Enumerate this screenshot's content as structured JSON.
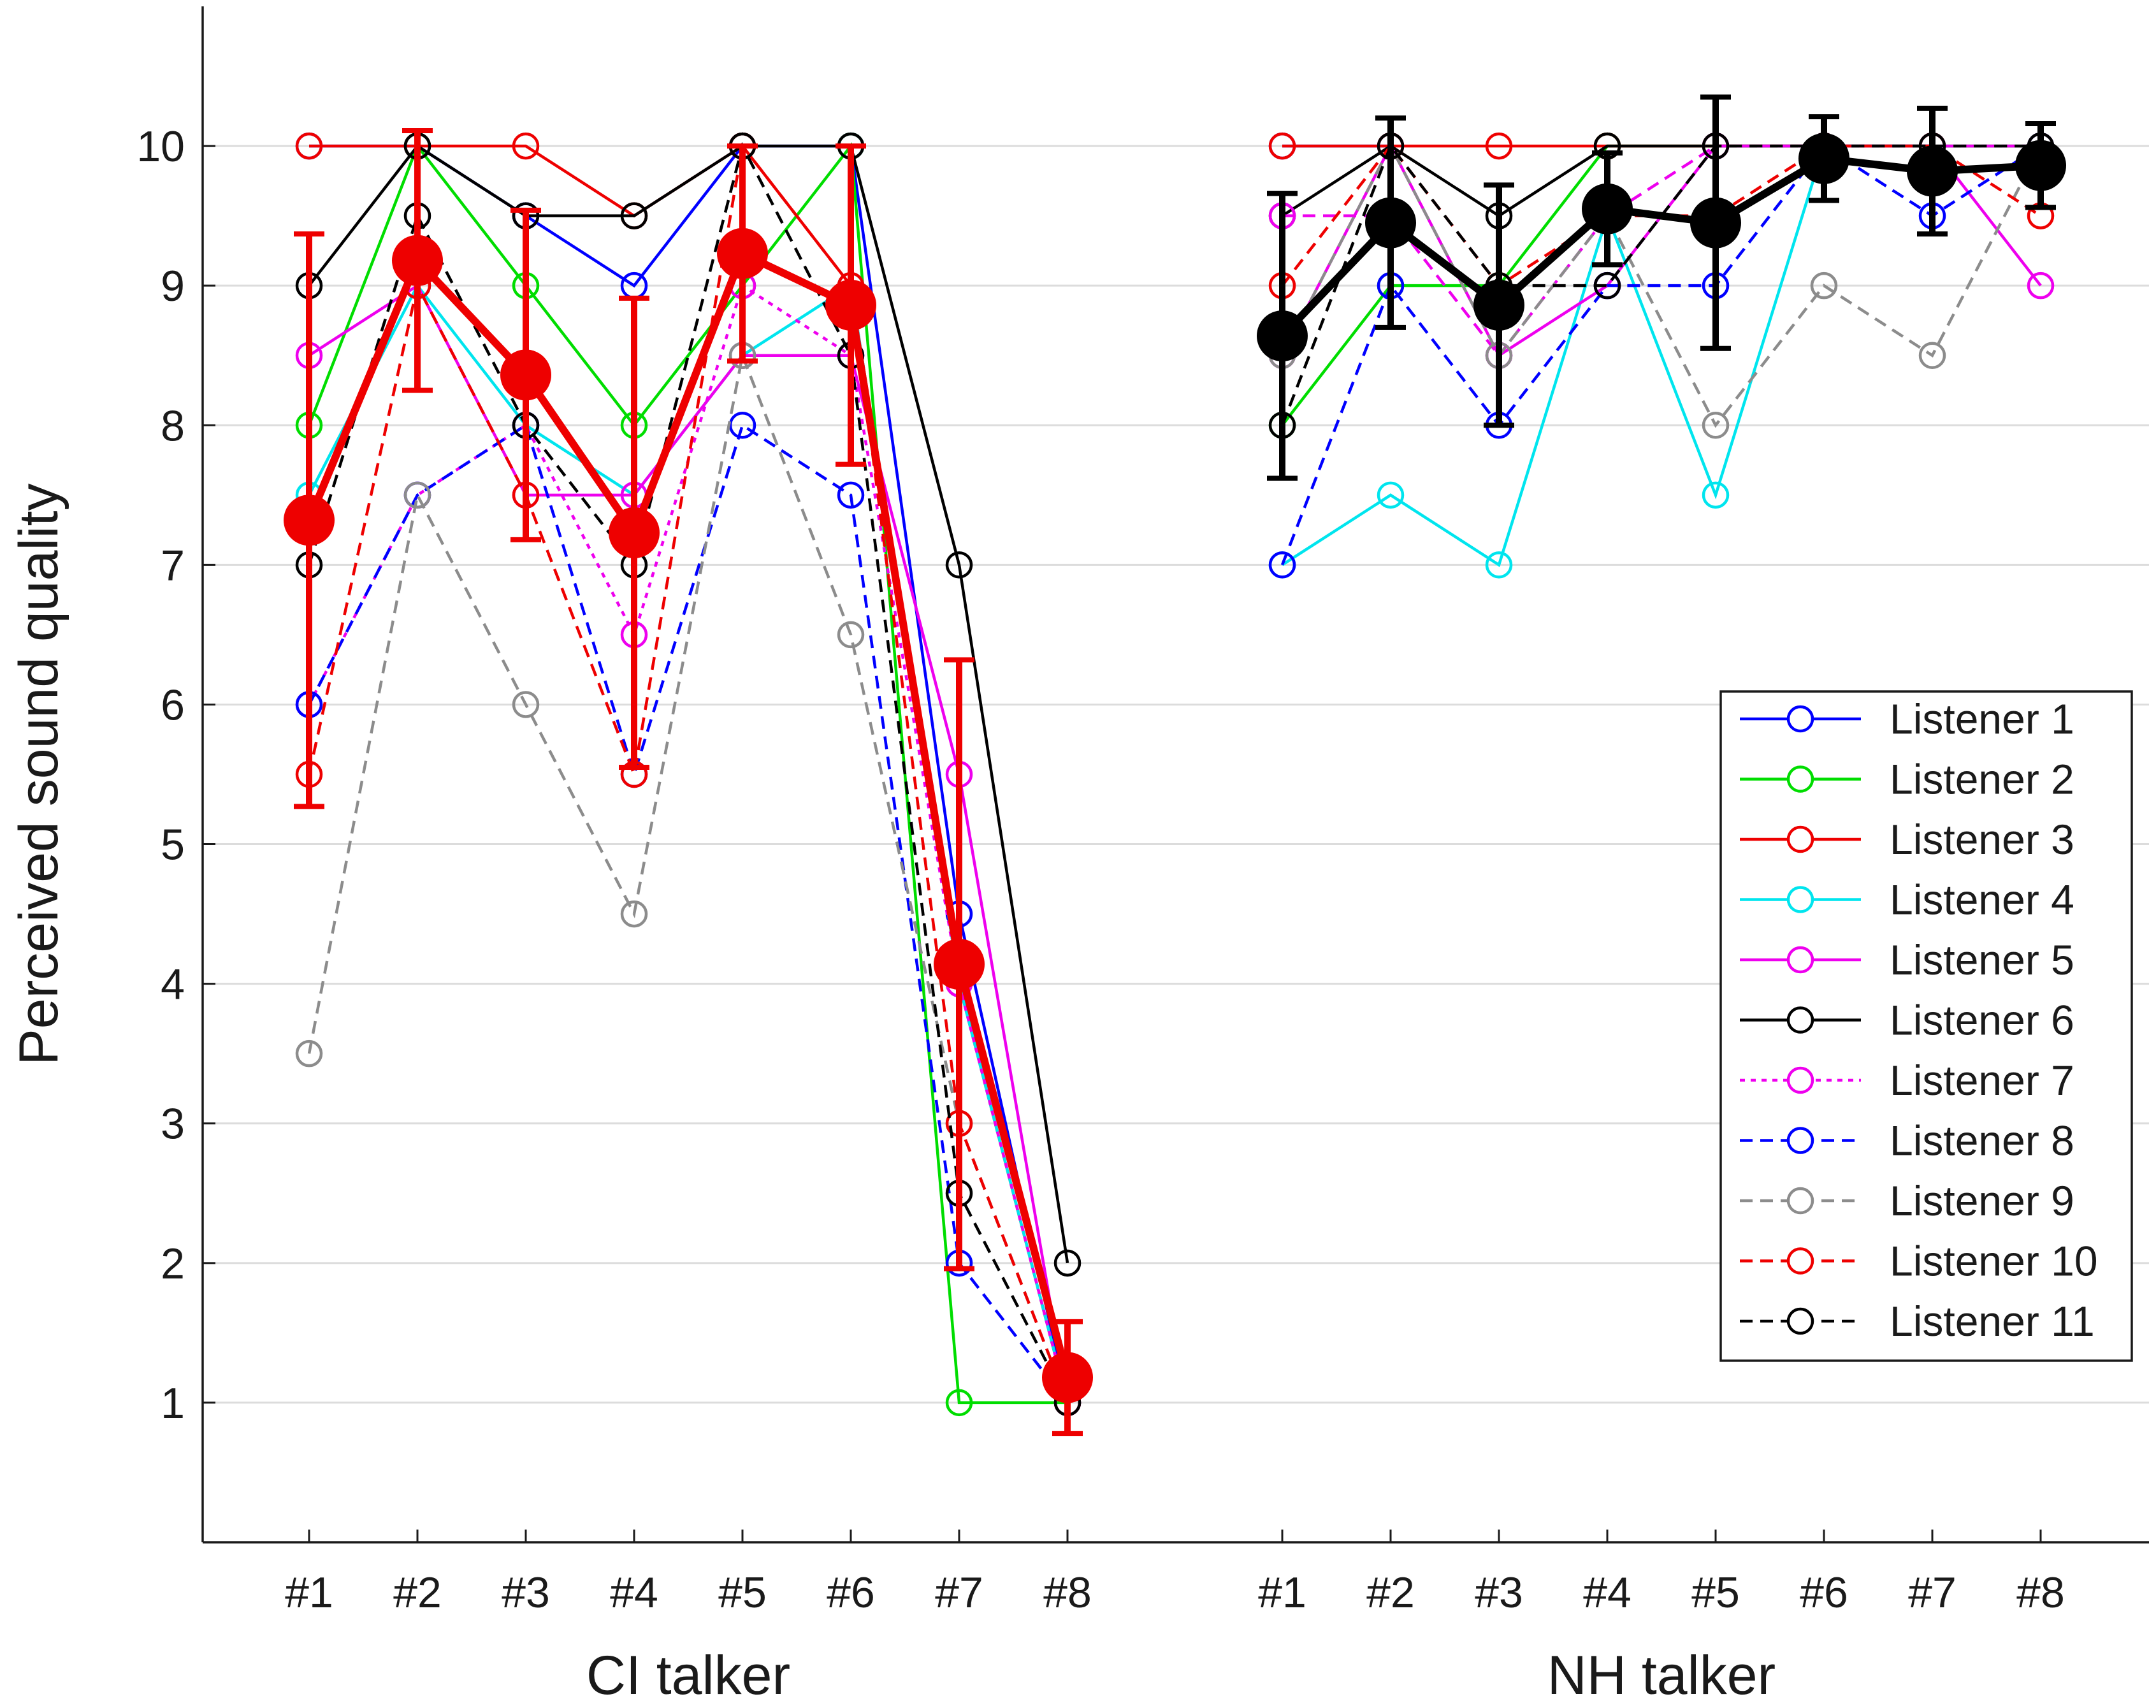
{
  "chart_data": {
    "type": "line",
    "ylabel": "Perceived sound quality",
    "ylim": [
      0,
      11
    ],
    "yticks": [
      "1",
      "2",
      "3",
      "4",
      "5",
      "6",
      "7",
      "8",
      "9",
      "10"
    ],
    "grid": "horizontal",
    "legend_position": "right",
    "panels": [
      {
        "xlabel": "CI talker",
        "categories": [
          "#1",
          "#2",
          "#3",
          "#4",
          "#5",
          "#6",
          "#7",
          "#8"
        ],
        "series": [
          {
            "name": "Listener 1",
            "color": "#0000ff",
            "dash": "solid",
            "values": [
              10,
              10,
              9.5,
              9,
              10,
              10,
              4.5,
              1
            ]
          },
          {
            "name": "Listener 2",
            "color": "#00dd00",
            "dash": "solid",
            "values": [
              8,
              10,
              9,
              8,
              9,
              10,
              1,
              1
            ]
          },
          {
            "name": "Listener 3",
            "color": "#ee0000",
            "dash": "solid",
            "values": [
              10,
              10,
              10,
              9.5,
              10,
              9,
              4,
              1
            ]
          },
          {
            "name": "Listener 4",
            "color": "#00e5ee",
            "dash": "solid",
            "values": [
              7.5,
              9,
              8,
              7.5,
              8.5,
              9,
              4,
              1
            ]
          },
          {
            "name": "Listener 5",
            "color": "#ee00ee",
            "dash": "solid",
            "values": [
              8.5,
              9,
              7.5,
              7.5,
              8.5,
              8.5,
              5.5,
              1
            ]
          },
          {
            "name": "Listener 6",
            "color": "#000000",
            "dash": "solid",
            "values": [
              9,
              10,
              9.5,
              9.5,
              10,
              10,
              7,
              2
            ]
          },
          {
            "name": "Listener 7",
            "color": "#ee00ee",
            "dash": "dotted",
            "values": [
              6,
              7.5,
              8,
              6.5,
              9,
              8.5,
              4,
              1
            ]
          },
          {
            "name": "Listener 8",
            "color": "#0000ff",
            "dash": "dashed",
            "values": [
              6,
              7.5,
              8,
              5.5,
              8,
              7.5,
              2,
              1
            ]
          },
          {
            "name": "Listener 9",
            "color": "#8c8c8c",
            "dash": "dashed",
            "values": [
              3.5,
              7.5,
              6,
              4.5,
              8.5,
              6.5,
              3,
              1
            ]
          },
          {
            "name": "Listener 10",
            "color": "#ee0000",
            "dash": "dashed",
            "values": [
              5.5,
              9,
              7.5,
              5.5,
              10,
              9,
              3,
              1
            ]
          },
          {
            "name": "Listener 11",
            "color": "#000000",
            "dash": "dashed",
            "values": [
              7,
              9.5,
              8,
              7,
              10,
              8.5,
              2.5,
              1
            ]
          }
        ],
        "mean": {
          "color": "#ee0000",
          "values": [
            7.32,
            9.18,
            8.36,
            7.23,
            9.23,
            8.86,
            4.14,
            1.18
          ],
          "error": [
            2.05,
            0.93,
            1.18,
            1.68,
            0.77,
            1.14,
            2.18,
            0.4
          ]
        }
      },
      {
        "xlabel": "NH talker",
        "categories": [
          "#1",
          "#2",
          "#3",
          "#4",
          "#5",
          "#6",
          "#7",
          "#8"
        ],
        "series": [
          {
            "name": "Listener 1",
            "color": "#0000ff",
            "dash": "solid",
            "values": [
              10,
              10,
              null,
              null,
              null,
              null,
              null,
              null
            ]
          },
          {
            "name": "Listener 2",
            "color": "#00dd00",
            "dash": "solid",
            "values": [
              8,
              9,
              9,
              10,
              10,
              10,
              10,
              null
            ]
          },
          {
            "name": "Listener 3",
            "color": "#ee0000",
            "dash": "solid",
            "values": [
              10,
              10,
              10,
              10,
              10,
              10,
              10,
              null
            ]
          },
          {
            "name": "Listener 4",
            "color": "#00e5ee",
            "dash": "solid",
            "values": [
              7,
              7.5,
              7,
              9.5,
              7.5,
              10,
              10,
              null
            ]
          },
          {
            "name": "Listener 5",
            "color": "#ee00ee",
            "dash": "solid",
            "values": [
              8.5,
              10,
              8.5,
              9,
              10,
              10,
              10,
              9
            ]
          },
          {
            "name": "Listener 6",
            "color": "#000000",
            "dash": "solid",
            "values": [
              9.5,
              10,
              9.5,
              10,
              10,
              10,
              10,
              10
            ]
          },
          {
            "name": "Listener 7",
            "color": "#ee00ee",
            "dash": "dashed",
            "values": [
              9.5,
              9.5,
              8.5,
              9.5,
              10,
              10,
              10,
              10
            ]
          },
          {
            "name": "Listener 8",
            "color": "#0000ff",
            "dash": "dashed",
            "values": [
              7,
              9,
              8,
              9,
              9,
              10,
              9.5,
              10
            ]
          },
          {
            "name": "Listener 9",
            "color": "#8c8c8c",
            "dash": "dashed",
            "values": [
              8.5,
              10,
              8.5,
              9.5,
              8,
              9,
              8.5,
              10
            ]
          },
          {
            "name": "Listener 10",
            "color": "#ee0000",
            "dash": "dashed",
            "values": [
              9,
              10,
              9,
              9.5,
              9.5,
              10,
              10,
              9.5
            ]
          },
          {
            "name": "Listener 11",
            "color": "#000000",
            "dash": "dashed",
            "values": [
              8,
              10,
              9,
              9,
              10,
              10,
              10,
              10
            ]
          }
        ],
        "mean": {
          "color": "#000000",
          "values": [
            8.64,
            9.45,
            8.86,
            9.55,
            9.45,
            9.91,
            9.82,
            9.86
          ],
          "error": [
            1.02,
            0.75,
            0.86,
            0.4,
            0.9,
            0.3,
            0.45,
            0.3
          ]
        }
      }
    ]
  }
}
